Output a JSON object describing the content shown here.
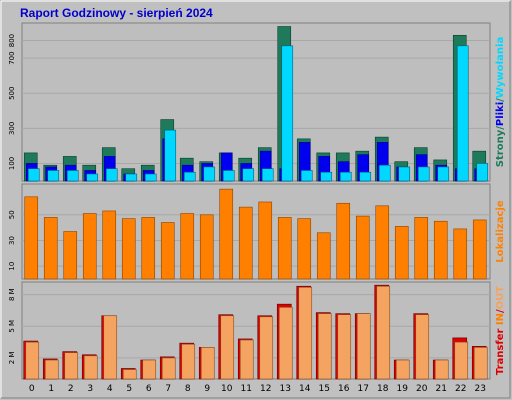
{
  "title": "Raport Godzinowy -   sierpień 2024",
  "colors": {
    "background": "#c0c0c0",
    "plot_bg": "#bebebe",
    "title": "#0000cc",
    "strony": "#1e7a5a",
    "pliki": "#0000ee",
    "wywolania": "#00d8ff",
    "lokalizacje": "#ff8000",
    "transfer_in": "#dd0000",
    "transfer_out": "#f4a460"
  },
  "chart_data": [
    {
      "type": "bar",
      "panel": "pages",
      "categories": [
        "0",
        "1",
        "2",
        "3",
        "4",
        "5",
        "6",
        "7",
        "8",
        "9",
        "10",
        "11",
        "12",
        "13",
        "14",
        "15",
        "16",
        "17",
        "18",
        "19",
        "20",
        "21",
        "22",
        "23"
      ],
      "ylim": [
        0,
        900
      ],
      "yticks": [
        "100",
        "300",
        "500",
        "700",
        "800"
      ],
      "legend": [
        {
          "text": "Strony",
          "color": "#1e7a5a"
        },
        {
          "text": "/",
          "color": "#1e7a5a"
        },
        {
          "text": "Pliki",
          "color": "#0000ee"
        },
        {
          "text": "/",
          "color": "#1e7a5a"
        },
        {
          "text": "Wywołania",
          "color": "#00d8ff"
        }
      ],
      "series": [
        {
          "name": "Strony",
          "values": [
            160,
            90,
            140,
            90,
            190,
            70,
            90,
            350,
            130,
            110,
            160,
            130,
            190,
            880,
            240,
            160,
            160,
            170,
            250,
            110,
            190,
            120,
            830,
            170
          ]
        },
        {
          "name": "Pliki",
          "values": [
            100,
            80,
            90,
            60,
            140,
            40,
            60,
            240,
            90,
            100,
            160,
            100,
            170,
            70,
            220,
            140,
            110,
            150,
            220,
            80,
            150,
            90,
            70,
            70
          ]
        },
        {
          "name": "Wywołania",
          "values": [
            70,
            60,
            60,
            40,
            70,
            40,
            40,
            290,
            50,
            80,
            60,
            70,
            70,
            770,
            60,
            50,
            50,
            50,
            90,
            80,
            80,
            80,
            770,
            100
          ]
        }
      ]
    },
    {
      "type": "bar",
      "panel": "locations",
      "categories": [
        "0",
        "1",
        "2",
        "3",
        "4",
        "5",
        "6",
        "7",
        "8",
        "9",
        "10",
        "11",
        "12",
        "13",
        "14",
        "15",
        "16",
        "17",
        "18",
        "19",
        "20",
        "21",
        "22",
        "23"
      ],
      "ylim": [
        0,
        74
      ],
      "yticks": [
        "10",
        "30",
        "50"
      ],
      "legend": [
        {
          "text": "Lokalizacje",
          "color": "#ff8000"
        }
      ],
      "series": [
        {
          "name": "Lokalizacje",
          "values": [
            64,
            48,
            37,
            51,
            53,
            47,
            48,
            44,
            51,
            50,
            70,
            56,
            60,
            48,
            47,
            36,
            59,
            49,
            57,
            41,
            48,
            45,
            39,
            46
          ]
        }
      ]
    },
    {
      "type": "bar",
      "panel": "transfer",
      "categories": [
        "0",
        "1",
        "2",
        "3",
        "4",
        "5",
        "6",
        "7",
        "8",
        "9",
        "10",
        "11",
        "12",
        "13",
        "14",
        "15",
        "16",
        "17",
        "18",
        "19",
        "20",
        "21",
        "22",
        "23"
      ],
      "ylim": [
        0,
        9.2
      ],
      "yticks": [
        "2 M",
        "5 M",
        "8 M"
      ],
      "legend": [
        {
          "text": "Transfer ",
          "color": "#dd0000"
        },
        {
          "text": "IN",
          "color": "#ff8000"
        },
        {
          "text": "/",
          "color": "#dd0000"
        },
        {
          "text": "OUT",
          "color": "#f4a460"
        }
      ],
      "series": [
        {
          "name": "IN",
          "values": [
            3.6,
            1.9,
            2.6,
            2.3,
            6.0,
            1.0,
            1.8,
            2.1,
            3.4,
            3.0,
            6.1,
            3.8,
            6.0,
            7.1,
            8.8,
            6.3,
            6.2,
            6.2,
            8.9,
            1.8,
            6.2,
            1.8,
            3.9,
            3.1
          ]
        },
        {
          "name": "OUT",
          "values": [
            3.5,
            1.8,
            2.5,
            2.2,
            6.0,
            0.9,
            1.8,
            2.0,
            3.3,
            3.0,
            6.0,
            3.7,
            5.9,
            6.8,
            8.7,
            6.2,
            6.1,
            6.2,
            8.8,
            1.8,
            6.1,
            1.8,
            3.5,
            3.0
          ]
        }
      ]
    }
  ]
}
